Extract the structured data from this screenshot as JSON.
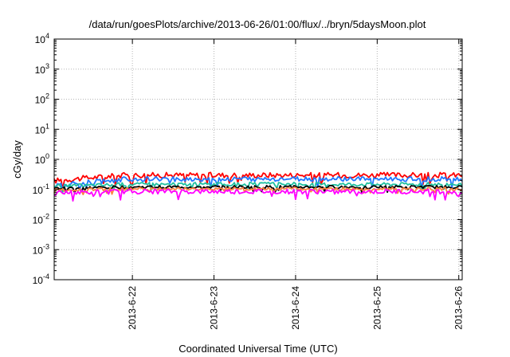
{
  "chart_data": {
    "type": "line",
    "title": "/data/run/goesPlots/archive/2013-06-26/01:00/flux/../bryn/5daysMoon.plot",
    "xlabel": "Coordinated Universal Time (UTC)",
    "ylabel": "cGy/day",
    "y_scale": "log",
    "ylim_exponents": [
      -4,
      4
    ],
    "y_tick_labels": [
      {
        "base": "10",
        "exp": "-4"
      },
      {
        "base": "10",
        "exp": "-3"
      },
      {
        "base": "10",
        "exp": "-2"
      },
      {
        "base": "10",
        "exp": "-1"
      },
      {
        "base": "10",
        "exp": "0"
      },
      {
        "base": "10",
        "exp": "1"
      },
      {
        "base": "10",
        "exp": "2"
      },
      {
        "base": "10",
        "exp": "3"
      },
      {
        "base": "10",
        "exp": "4"
      }
    ],
    "xlim": [
      "2013-06-21 01:00",
      "2013-06-26 01:00"
    ],
    "x_ticks": [
      "2013-6-22",
      "2013-6-23",
      "2013-6-24",
      "2013-6-25",
      "2013-6-26"
    ],
    "grid": true,
    "grid_style": "dotted",
    "series": [
      {
        "color": "#ff0000",
        "base": 0.3,
        "early_dip": 0.65,
        "noise": 0.09
      },
      {
        "color": "#1f77ff",
        "base": 0.22,
        "early_dip": 0.6,
        "noise": 0.08
      },
      {
        "color": "#20c0a0",
        "base": 0.15,
        "early_dip": 0.85,
        "noise": 0.06
      },
      {
        "color": "#000000",
        "base": 0.12,
        "early_dip": 0.9,
        "noise": 0.05
      },
      {
        "color": "#ff8040",
        "base": 0.105,
        "early_dip": 0.9,
        "noise": 0.05
      },
      {
        "color": "#ff00ff",
        "base": 0.085,
        "early_dip": 0.9,
        "noise": 0.08
      }
    ]
  }
}
